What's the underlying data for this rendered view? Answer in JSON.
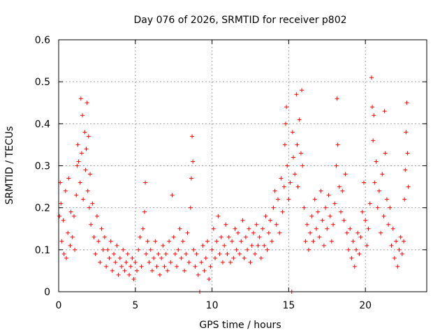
{
  "chart_data": {
    "type": "scatter",
    "title": "Day 076 of 2026, SRMTID for receiver p802",
    "xlabel": "GPS time / hours",
    "ylabel": "SRMTID / TECUs",
    "xlim": [
      0,
      24
    ],
    "ylim": [
      0,
      0.6
    ],
    "xticks": [
      0,
      5,
      10,
      15,
      20
    ],
    "xtick_labels": [
      "0",
      "5",
      "10",
      "15",
      "20"
    ],
    "yticks": [
      0,
      0.1,
      0.2,
      0.3,
      0.4,
      0.5,
      0.6
    ],
    "ytick_labels": [
      "0",
      "0.1",
      "0.2",
      "0.3",
      "0.4",
      "0.5",
      "0.6"
    ],
    "grid": true,
    "marker": "+",
    "series": [
      {
        "name": "SRMTID",
        "color": "#ff0000",
        "points": [
          [
            0.05,
            0.18
          ],
          [
            0.1,
            0.26
          ],
          [
            0.15,
            0.21
          ],
          [
            0.2,
            0.12
          ],
          [
            0.3,
            0.17
          ],
          [
            0.35,
            0.09
          ],
          [
            0.45,
            0.24
          ],
          [
            0.5,
            0.08
          ],
          [
            0.6,
            0.14
          ],
          [
            0.65,
            0.27
          ],
          [
            0.75,
            0.11
          ],
          [
            0.8,
            0.19
          ],
          [
            0.9,
            0.13
          ],
          [
            1.0,
            0.18
          ],
          [
            1.05,
            0.1
          ],
          [
            1.15,
            0.23
          ],
          [
            1.2,
            0.3
          ],
          [
            1.25,
            0.35
          ],
          [
            1.3,
            0.31
          ],
          [
            1.4,
            0.26
          ],
          [
            1.45,
            0.46
          ],
          [
            1.5,
            0.33
          ],
          [
            1.55,
            0.42
          ],
          [
            1.6,
            0.22
          ],
          [
            1.7,
            0.38
          ],
          [
            1.75,
            0.29
          ],
          [
            1.8,
            0.34
          ],
          [
            1.85,
            0.45
          ],
          [
            1.9,
            0.24
          ],
          [
            1.95,
            0.37
          ],
          [
            2.0,
            0.2
          ],
          [
            2.05,
            0.28
          ],
          [
            2.1,
            0.16
          ],
          [
            2.2,
            0.21
          ],
          [
            2.3,
            0.13
          ],
          [
            2.4,
            0.09
          ],
          [
            2.5,
            0.18
          ],
          [
            2.6,
            0.12
          ],
          [
            2.7,
            0.07
          ],
          [
            2.8,
            0.15
          ],
          [
            2.9,
            0.1
          ],
          [
            3.0,
            0.13
          ],
          [
            3.1,
            0.06
          ],
          [
            3.2,
            0.1
          ],
          [
            3.3,
            0.08
          ],
          [
            3.4,
            0.12
          ],
          [
            3.5,
            0.05
          ],
          [
            3.6,
            0.09
          ],
          [
            3.7,
            0.07
          ],
          [
            3.8,
            0.11
          ],
          [
            3.9,
            0.04
          ],
          [
            4.0,
            0.08
          ],
          [
            4.1,
            0.06
          ],
          [
            4.2,
            0.1
          ],
          [
            4.3,
            0.05
          ],
          [
            4.4,
            0.07
          ],
          [
            4.5,
            0.09
          ],
          [
            4.6,
            0.04
          ],
          [
            4.7,
            0.06
          ],
          [
            4.8,
            0.08
          ],
          [
            4.9,
            0.03
          ],
          [
            5.0,
            0.07
          ],
          [
            5.1,
            0.05
          ],
          [
            5.2,
            0.1
          ],
          [
            5.3,
            0.13
          ],
          [
            5.4,
            0.06
          ],
          [
            5.5,
            0.15
          ],
          [
            5.6,
            0.19
          ],
          [
            5.65,
            0.26
          ],
          [
            5.7,
            0.09
          ],
          [
            5.8,
            0.12
          ],
          [
            5.9,
            0.07
          ],
          [
            6.0,
            0.1
          ],
          [
            6.1,
            0.05
          ],
          [
            6.2,
            0.08
          ],
          [
            6.3,
            0.12
          ],
          [
            6.4,
            0.06
          ],
          [
            6.5,
            0.09
          ],
          [
            6.6,
            0.04
          ],
          [
            6.7,
            0.08
          ],
          [
            6.8,
            0.11
          ],
          [
            6.9,
            0.06
          ],
          [
            7.0,
            0.09
          ],
          [
            7.1,
            0.05
          ],
          [
            7.2,
            0.12
          ],
          [
            7.3,
            0.07
          ],
          [
            7.4,
            0.23
          ],
          [
            7.5,
            0.13
          ],
          [
            7.6,
            0.09
          ],
          [
            7.7,
            0.06
          ],
          [
            7.8,
            0.1
          ],
          [
            7.9,
            0.15
          ],
          [
            8.0,
            0.08
          ],
          [
            8.1,
            0.12
          ],
          [
            8.2,
            0.05
          ],
          [
            8.3,
            0.09
          ],
          [
            8.4,
            0.14
          ],
          [
            8.5,
            0.07
          ],
          [
            8.6,
            0.2
          ],
          [
            8.65,
            0.27
          ],
          [
            8.7,
            0.37
          ],
          [
            8.75,
            0.31
          ],
          [
            8.8,
            0.1
          ],
          [
            8.9,
            0.06
          ],
          [
            9.0,
            0.09
          ],
          [
            9.1,
            0.04
          ],
          [
            9.2,
            0.0
          ],
          [
            9.3,
            0.07
          ],
          [
            9.4,
            0.11
          ],
          [
            9.5,
            0.05
          ],
          [
            9.6,
            0.08
          ],
          [
            9.7,
            0.12
          ],
          [
            9.8,
            0.03
          ],
          [
            9.9,
            0.06
          ],
          [
            10.0,
            0.1
          ],
          [
            10.1,
            0.15
          ],
          [
            10.2,
            0.08
          ],
          [
            10.3,
            0.12
          ],
          [
            10.4,
            0.18
          ],
          [
            10.5,
            0.09
          ],
          [
            10.6,
            0.13
          ],
          [
            10.7,
            0.07
          ],
          [
            10.8,
            0.11
          ],
          [
            10.9,
            0.16
          ],
          [
            11.0,
            0.09
          ],
          [
            11.1,
            0.13
          ],
          [
            11.2,
            0.07
          ],
          [
            11.3,
            0.12
          ],
          [
            11.4,
            0.08
          ],
          [
            11.5,
            0.15
          ],
          [
            11.6,
            0.1
          ],
          [
            11.7,
            0.14
          ],
          [
            11.8,
            0.09
          ],
          [
            11.9,
            0.12
          ],
          [
            12.0,
            0.17
          ],
          [
            12.1,
            0.08
          ],
          [
            12.2,
            0.13
          ],
          [
            12.3,
            0.1
          ],
          [
            12.4,
            0.15
          ],
          [
            12.5,
            0.07
          ],
          [
            12.6,
            0.11
          ],
          [
            12.7,
            0.14
          ],
          [
            12.8,
            0.09
          ],
          [
            12.9,
            0.16
          ],
          [
            13.0,
            0.11
          ],
          [
            13.1,
            0.13
          ],
          [
            13.2,
            0.08
          ],
          [
            13.3,
            0.15
          ],
          [
            13.4,
            0.11
          ],
          [
            13.5,
            0.18
          ],
          [
            13.6,
            0.1
          ],
          [
            13.7,
            0.14
          ],
          [
            13.8,
            0.17
          ],
          [
            13.9,
            0.12
          ],
          [
            14.0,
            0.2
          ],
          [
            14.1,
            0.24
          ],
          [
            14.2,
            0.16
          ],
          [
            14.3,
            0.22
          ],
          [
            14.4,
            0.14
          ],
          [
            14.5,
            0.27
          ],
          [
            14.6,
            0.19
          ],
          [
            14.7,
            0.25
          ],
          [
            14.75,
            0.35
          ],
          [
            14.8,
            0.4
          ],
          [
            14.85,
            0.44
          ],
          [
            14.9,
            0.3
          ],
          [
            15.0,
            0.22
          ],
          [
            15.1,
            0.26
          ],
          [
            15.2,
            0.0
          ],
          [
            15.25,
            0.38
          ],
          [
            15.3,
            0.32
          ],
          [
            15.4,
            0.28
          ],
          [
            15.5,
            0.47
          ],
          [
            15.55,
            0.35
          ],
          [
            15.6,
            0.25
          ],
          [
            15.7,
            0.41
          ],
          [
            15.8,
            0.33
          ],
          [
            15.85,
            0.48
          ],
          [
            15.9,
            0.3
          ],
          [
            16.0,
            0.2
          ],
          [
            16.1,
            0.12
          ],
          [
            16.2,
            0.16
          ],
          [
            16.3,
            0.1
          ],
          [
            16.4,
            0.14
          ],
          [
            16.5,
            0.18
          ],
          [
            16.6,
            0.12
          ],
          [
            16.7,
            0.22
          ],
          [
            16.8,
            0.15
          ],
          [
            16.9,
            0.19
          ],
          [
            17.0,
            0.13
          ],
          [
            17.1,
            0.24
          ],
          [
            17.2,
            0.17
          ],
          [
            17.3,
            0.11
          ],
          [
            17.4,
            0.2
          ],
          [
            17.5,
            0.15
          ],
          [
            17.6,
            0.23
          ],
          [
            17.7,
            0.18
          ],
          [
            17.8,
            0.12
          ],
          [
            17.9,
            0.16
          ],
          [
            18.0,
            0.21
          ],
          [
            18.1,
            0.3
          ],
          [
            18.15,
            0.46
          ],
          [
            18.2,
            0.35
          ],
          [
            18.3,
            0.25
          ],
          [
            18.4,
            0.19
          ],
          [
            18.5,
            0.24
          ],
          [
            18.6,
            0.17
          ],
          [
            18.7,
            0.28
          ],
          [
            18.8,
            0.14
          ],
          [
            18.9,
            0.1
          ],
          [
            19.0,
            0.15
          ],
          [
            19.1,
            0.08
          ],
          [
            19.2,
            0.12
          ],
          [
            19.3,
            0.06
          ],
          [
            19.4,
            0.1
          ],
          [
            19.5,
            0.14
          ],
          [
            19.6,
            0.09
          ],
          [
            19.7,
            0.13
          ],
          [
            19.8,
            0.19
          ],
          [
            19.9,
            0.26
          ],
          [
            20.0,
            0.17
          ],
          [
            20.1,
            0.11
          ],
          [
            20.2,
            0.15
          ],
          [
            20.3,
            0.21
          ],
          [
            20.4,
            0.51
          ],
          [
            20.45,
            0.44
          ],
          [
            20.5,
            0.36
          ],
          [
            20.55,
            0.42
          ],
          [
            20.6,
            0.26
          ],
          [
            20.7,
            0.31
          ],
          [
            20.8,
            0.2
          ],
          [
            20.9,
            0.24
          ],
          [
            21.0,
            0.14
          ],
          [
            21.1,
            0.28
          ],
          [
            21.2,
            0.18
          ],
          [
            21.25,
            0.43
          ],
          [
            21.3,
            0.33
          ],
          [
            21.4,
            0.22
          ],
          [
            21.5,
            0.16
          ],
          [
            21.6,
            0.2
          ],
          [
            21.7,
            0.11
          ],
          [
            21.8,
            0.15
          ],
          [
            21.9,
            0.08
          ],
          [
            22.0,
            0.12
          ],
          [
            22.1,
            0.06
          ],
          [
            22.2,
            0.1
          ],
          [
            22.3,
            0.13
          ],
          [
            22.4,
            0.09
          ],
          [
            22.5,
            0.12
          ],
          [
            22.55,
            0.22
          ],
          [
            22.6,
            0.29
          ],
          [
            22.65,
            0.38
          ],
          [
            22.7,
            0.45
          ],
          [
            22.75,
            0.33
          ],
          [
            22.8,
            0.25
          ]
        ]
      }
    ]
  }
}
